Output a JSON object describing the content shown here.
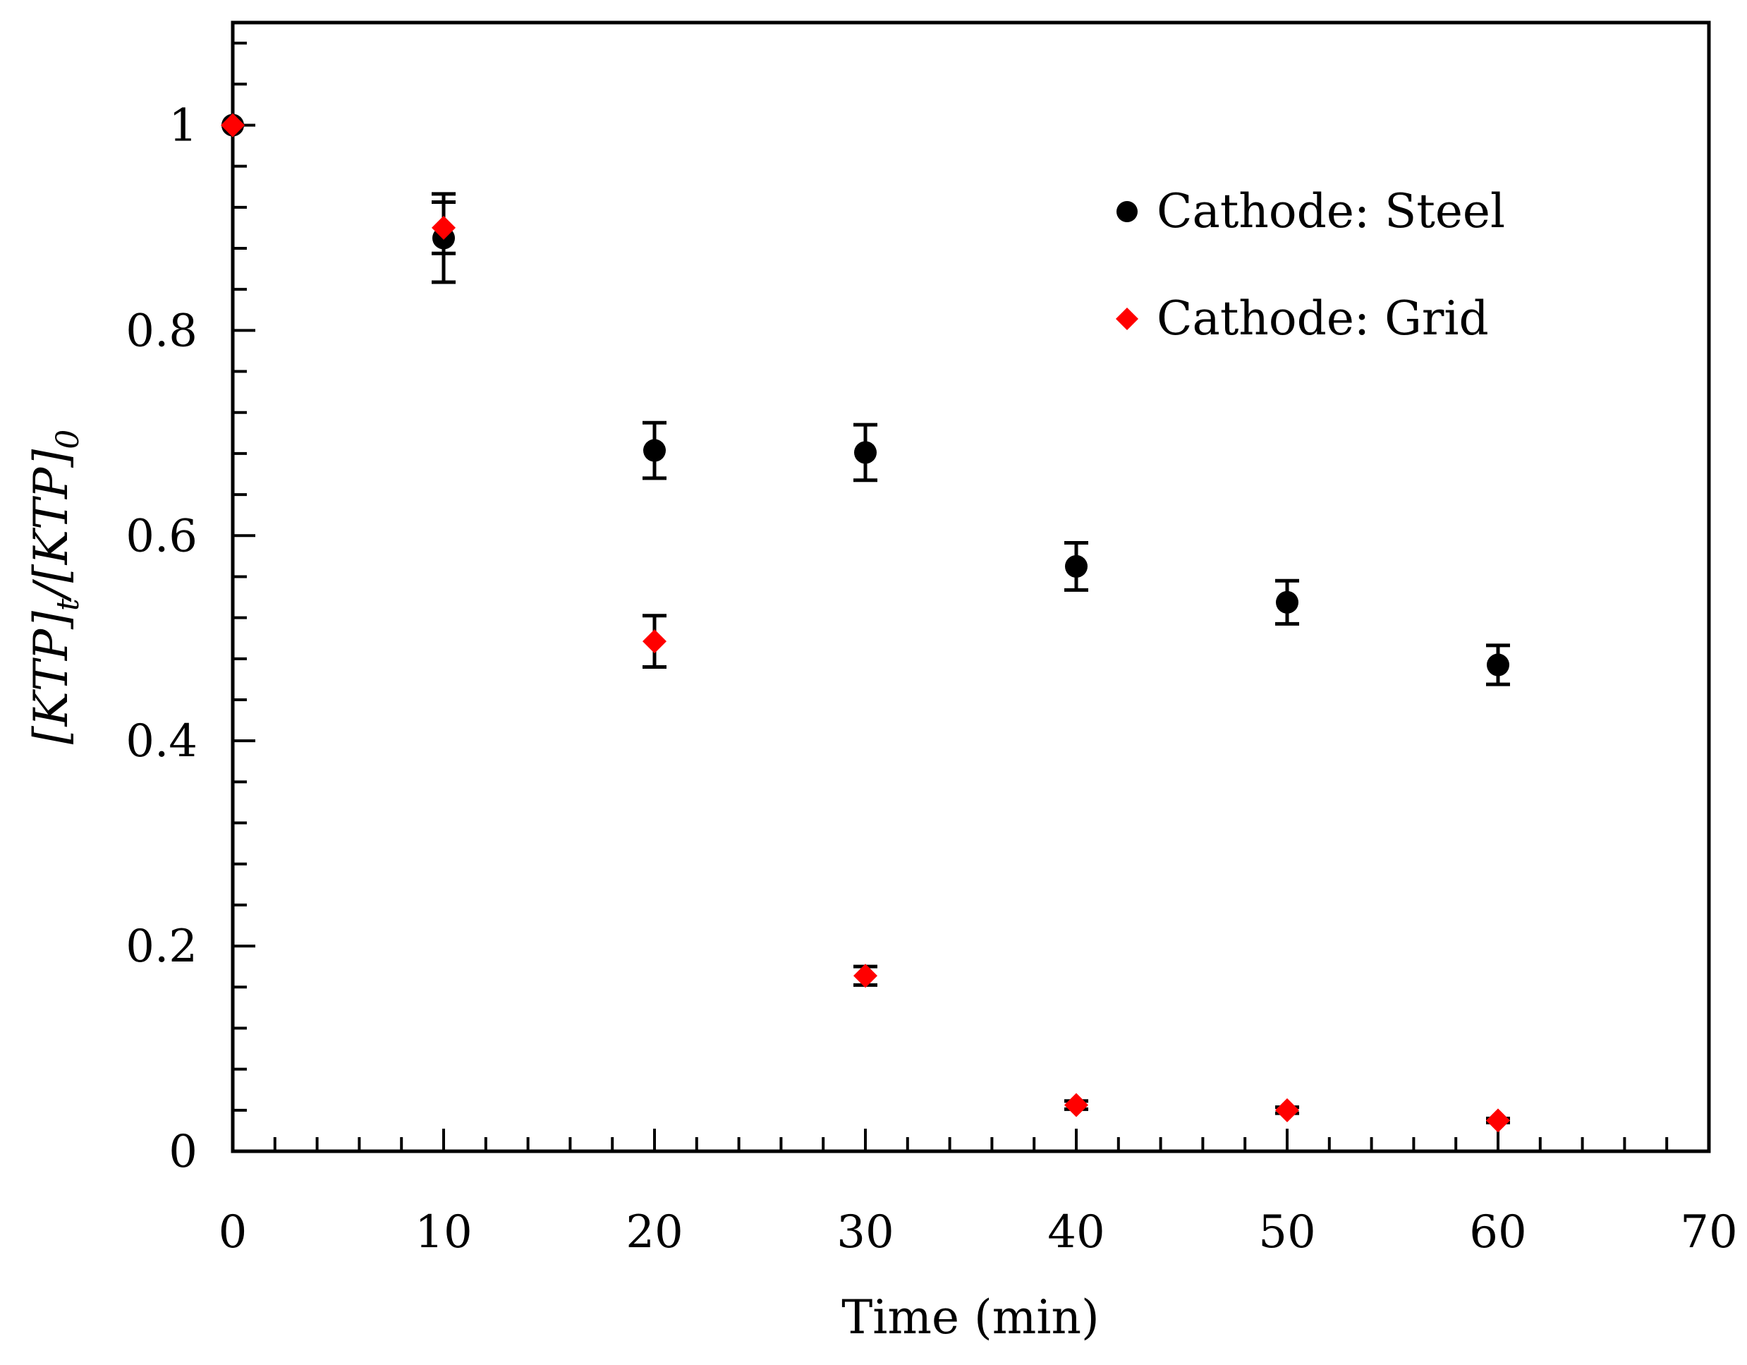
{
  "chart_data": {
    "type": "scatter",
    "title": "",
    "xlabel": "Time (min)",
    "ylabel": {
      "part1": "[KTP]",
      "sub1": "t",
      "part2": "/[KTP]",
      "sub2": "0"
    },
    "xlim": [
      0,
      70
    ],
    "ylim": [
      0,
      1.1
    ],
    "x_ticks": [
      0,
      10,
      20,
      30,
      40,
      50,
      60,
      70
    ],
    "y_ticks": [
      0,
      0.2,
      0.4,
      0.6,
      0.8,
      1
    ],
    "x_tick_labels": [
      "0",
      "10",
      "20",
      "30",
      "40",
      "50",
      "60",
      "70"
    ],
    "y_tick_labels": [
      "0",
      "0.2",
      "0.4",
      "0.6",
      "0.8",
      "1"
    ],
    "x_minor_step": 2,
    "y_minor_step": 0.04,
    "grid": false,
    "legend_position": "top-right",
    "series": [
      {
        "name": "Cathode: Steel",
        "marker": "circle",
        "color": "#000000",
        "x": [
          0,
          10,
          20,
          30,
          40,
          50,
          60
        ],
        "y": [
          1.0,
          0.89,
          0.683,
          0.681,
          0.57,
          0.535,
          0.474
        ],
        "err": [
          0.0,
          0.043,
          0.027,
          0.027,
          0.023,
          0.021,
          0.019
        ]
      },
      {
        "name": "Cathode: Grid",
        "marker": "diamond",
        "color": "#ff0000",
        "x": [
          0,
          10,
          20,
          30,
          40,
          50,
          60
        ],
        "y": [
          1.0,
          0.9,
          0.497,
          0.171,
          0.045,
          0.04,
          0.03
        ],
        "err": [
          0.0,
          0.025,
          0.025,
          0.009,
          0.004,
          0.003,
          0.002
        ]
      }
    ]
  }
}
